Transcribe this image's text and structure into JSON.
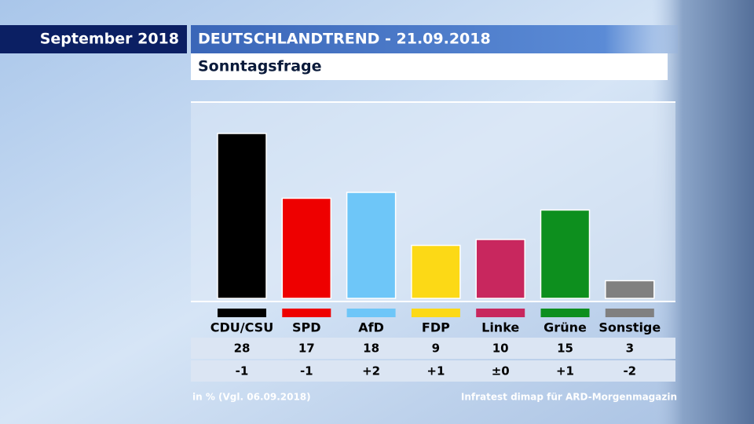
{
  "chart_data": {
    "type": "bar",
    "period": "September 2018",
    "title": "DEUTSCHLANDTREND - 21.09.2018",
    "subtitle": "Sonntagsfrage",
    "categories": [
      "CDU/CSU",
      "SPD",
      "AfD",
      "FDP",
      "Linke",
      "Grüne",
      "Sonstige"
    ],
    "values": [
      28,
      17,
      18,
      9,
      10,
      15,
      3
    ],
    "colors": [
      "#000000",
      "#ee0000",
      "#6ec6f8",
      "#fcd916",
      "#c8275e",
      "#0d8f1e",
      "#808080"
    ],
    "changes": [
      "-1",
      "-1",
      "+2",
      "+1",
      "±0",
      "+1",
      "-2"
    ],
    "note": "in % (Vgl. 06.09.2018)",
    "source": "Infratest dimap für ARD-Morgenmagazin"
  }
}
